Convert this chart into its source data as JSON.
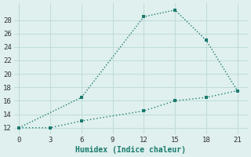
{
  "line1_x": [
    0,
    6,
    12,
    15,
    18,
    21
  ],
  "line1_y": [
    12,
    16.5,
    28.5,
    29.5,
    25,
    17.5
  ],
  "line2_x": [
    0,
    3,
    6,
    12,
    15,
    18,
    21
  ],
  "line2_y": [
    12,
    12,
    13,
    14.5,
    16,
    16.5,
    17.5
  ],
  "line_color": "#1a7a6e",
  "bg_color": "#dff0ee",
  "grid_color": "#c0dcd8",
  "xlabel": "Humidex (Indice chaleur)",
  "xlim": [
    -0.5,
    22
  ],
  "ylim": [
    11,
    30.5
  ],
  "xticks": [
    0,
    3,
    6,
    9,
    12,
    15,
    18,
    21
  ],
  "yticks": [
    12,
    14,
    16,
    18,
    20,
    22,
    24,
    26,
    28
  ],
  "markersize": 3.5,
  "linewidth": 1.0
}
